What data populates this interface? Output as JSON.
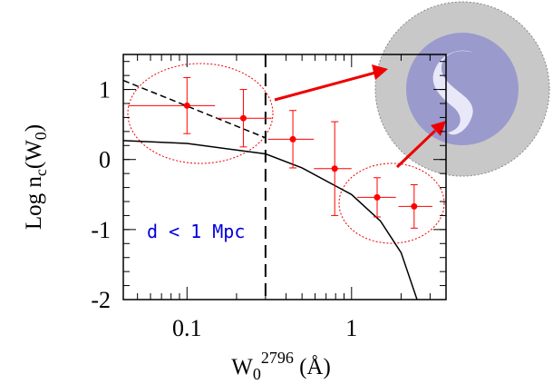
{
  "chart_data": {
    "type": "scatter",
    "ylabel_parts": [
      "Log n",
      "c",
      "(W",
      "0",
      ")"
    ],
    "xlabel_parts": [
      "W",
      "0",
      "2796",
      " (Å)"
    ],
    "annotation": "d < 1 Mpc",
    "xlim": [
      0.041,
      3.75
    ],
    "ylim": [
      -2,
      1.5
    ],
    "xscale": "log",
    "xticks": [
      0.1,
      1
    ],
    "yticks": [
      -2,
      -1,
      0,
      1
    ],
    "series": [
      {
        "color": "#ff0000",
        "x": [
          0.1,
          0.22,
          0.44,
          0.79,
          1.43,
          2.4
        ],
        "x_low": [
          0.044,
          0.152,
          0.31,
          0.59,
          1.08,
          1.93
        ],
        "x_high": [
          0.148,
          0.327,
          0.59,
          1.0,
          1.86,
          3.1
        ],
        "values": [
          0.77,
          0.59,
          0.29,
          -0.13,
          -0.54,
          -0.67
        ],
        "yerr": [
          0.4,
          0.41,
          0.41,
          0.67,
          0.28,
          0.31
        ]
      }
    ],
    "curves": [
      {
        "style": "solid",
        "color": "#000000",
        "x": [
          0.041,
          0.1,
          0.3,
          0.5,
          1,
          1.5,
          2,
          2.5
        ],
        "values": [
          0.27,
          0.23,
          0.08,
          -0.12,
          -0.5,
          -0.88,
          -1.33,
          -2
        ]
      },
      {
        "style": "dashed",
        "color": "#000000",
        "x": [
          0.041,
          0.3
        ],
        "values": [
          1.13,
          0.31
        ]
      }
    ],
    "vline": 0.3
  }
}
